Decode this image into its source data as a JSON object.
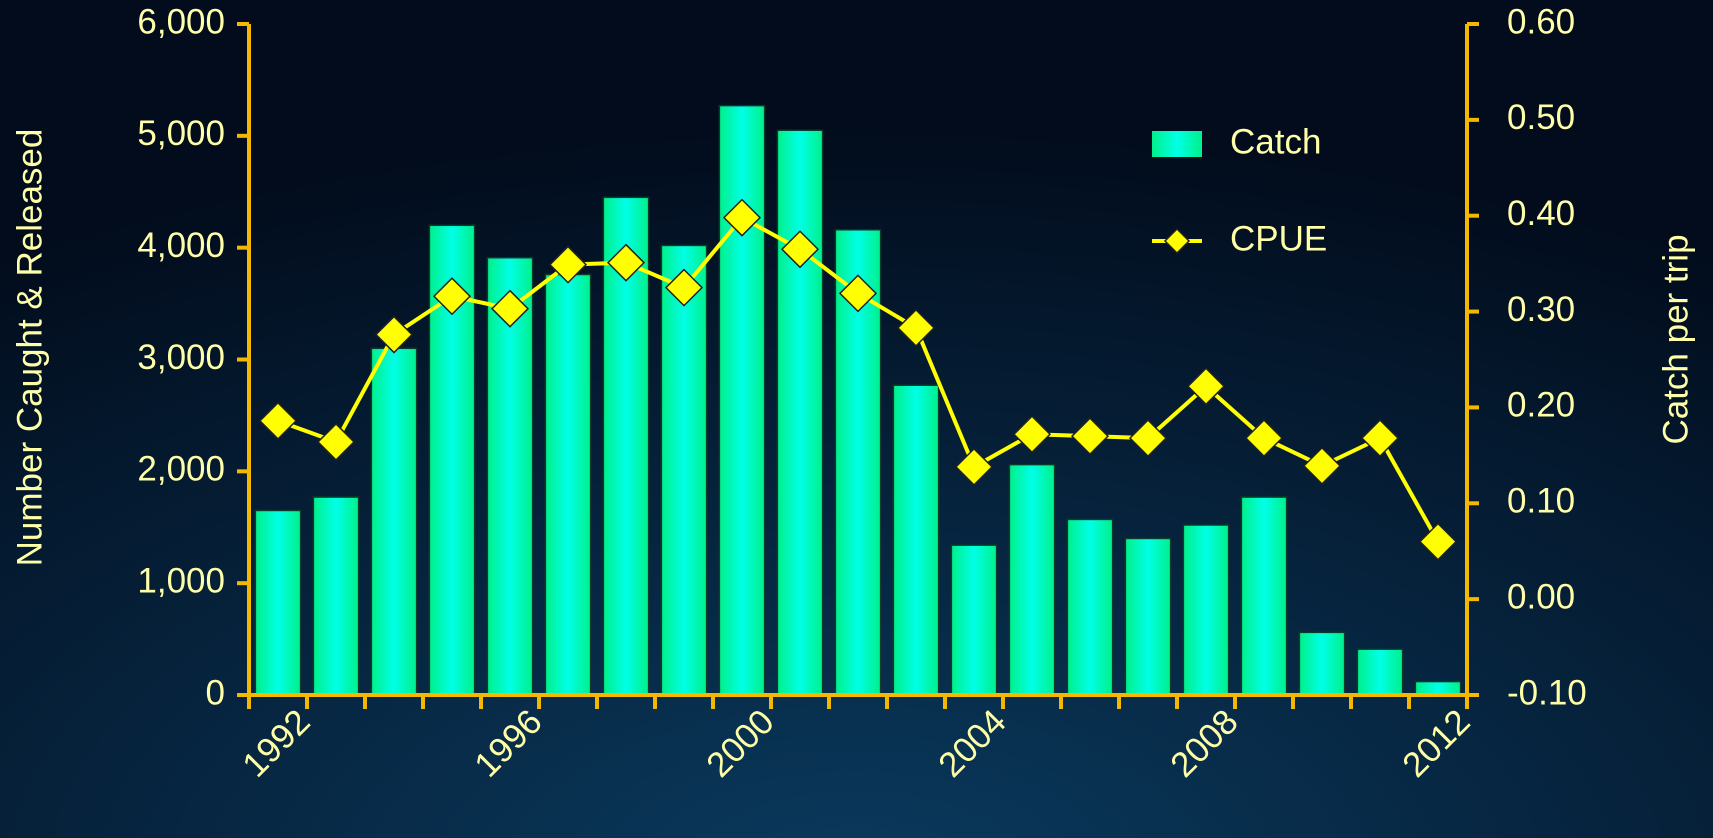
{
  "chart_data": {
    "type": "bar",
    "categories": [
      "1992",
      null,
      null,
      null,
      "1996",
      null,
      null,
      null,
      "2000",
      null,
      null,
      null,
      "2004",
      null,
      null,
      null,
      "2008",
      null,
      null,
      null,
      "2012"
    ],
    "series": [
      {
        "name": "Catch",
        "type": "bar",
        "color": "#00f596",
        "values": [
          1650,
          1770,
          3100,
          4200,
          3910,
          3760,
          4450,
          4020,
          5270,
          5050,
          4160,
          2770,
          1340,
          2060,
          1570,
          1400,
          1520,
          1770,
          560,
          410,
          120
        ]
      },
      {
        "name": "CPUE",
        "type": "line",
        "axis": "y2",
        "color": "#ffff00",
        "values": [
          0.186,
          0.164,
          0.276,
          0.316,
          0.303,
          0.349,
          0.351,
          0.325,
          0.398,
          0.365,
          0.319,
          0.283,
          0.138,
          0.172,
          0.17,
          0.168,
          0.222,
          0.168,
          0.139,
          0.168,
          0.06
        ]
      }
    ],
    "ylabel": "Number Caught & Released",
    "y2label": "Catch per trip",
    "ylim": [
      0,
      6000
    ],
    "yticks": [
      0,
      {
        "value": 1000,
        "label": "1,000"
      },
      {
        "value": 2000,
        "label": "2,000"
      },
      {
        "value": 3000,
        "label": "3,000"
      },
      {
        "value": 4000,
        "label": "4,000"
      },
      {
        "value": 5000,
        "label": "5,000"
      },
      {
        "value": 6000,
        "label": "6,000"
      }
    ],
    "y2lim": [
      -0.1,
      0.6
    ],
    "y2ticks": [
      {
        "value": -0.1,
        "label": "-0.10"
      },
      {
        "value": 0,
        "label": "0.00"
      },
      {
        "value": 0.1,
        "label": "0.10"
      },
      {
        "value": 0.2,
        "label": "0.20"
      },
      {
        "value": 0.3,
        "label": "0.30"
      },
      {
        "value": 0.4,
        "label": "0.40"
      },
      {
        "value": 0.5,
        "label": "0.50"
      },
      {
        "value": 0.6,
        "label": "0.60"
      }
    ],
    "legend": "upper right"
  }
}
